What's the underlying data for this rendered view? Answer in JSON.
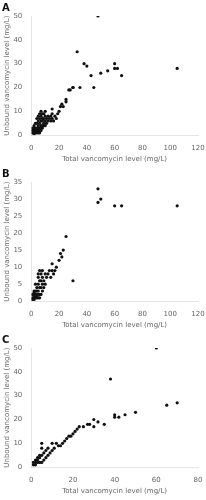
{
  "chart_data": [
    {
      "type": "scatter",
      "title": "A",
      "xlabel": "Total vancomycin level (mg/L)",
      "ylabel": "Unbound vancomycin level (mg/L)",
      "xlim": [
        0,
        120
      ],
      "ylim": [
        0,
        50
      ],
      "xticks": [
        0,
        20,
        40,
        60,
        80,
        100,
        120
      ],
      "yticks": [
        0,
        10,
        20,
        30,
        40,
        50
      ],
      "grid": false,
      "color": "#111111",
      "marker": "circle",
      "x": [
        1,
        1,
        1,
        2,
        2,
        2,
        2,
        2,
        2,
        2,
        3,
        3,
        3,
        3,
        3,
        3,
        4,
        4,
        4,
        4,
        4,
        4,
        4,
        5,
        5,
        5,
        5,
        5,
        5,
        5,
        6,
        6,
        6,
        6,
        6,
        6,
        7,
        7,
        7,
        7,
        7,
        7,
        8,
        8,
        8,
        8,
        8,
        9,
        9,
        9,
        9,
        10,
        10,
        10,
        10,
        11,
        11,
        12,
        12,
        13,
        14,
        14,
        15,
        15,
        15,
        16,
        17,
        18,
        19,
        20,
        21,
        22,
        23,
        25,
        25,
        27,
        28,
        30,
        30,
        33,
        35,
        38,
        40,
        43,
        45,
        48,
        50,
        55,
        60,
        60,
        62,
        65,
        105
      ],
      "values": [
        1,
        2,
        3,
        0.5,
        1,
        1.5,
        2,
        2.5,
        3,
        4,
        1,
        1.5,
        2,
        2.5,
        3,
        5,
        1,
        1.5,
        2,
        2.5,
        3,
        5,
        7,
        1,
        1.5,
        2,
        3,
        4,
        6,
        8,
        1,
        2,
        3,
        5,
        7,
        9,
        2,
        3,
        4,
        6,
        8,
        10,
        3,
        4,
        6,
        7,
        9,
        4,
        5,
        7,
        9,
        4,
        6,
        8,
        10,
        5,
        7,
        6,
        8,
        7,
        6,
        8,
        7,
        9,
        11,
        6,
        8,
        7,
        9,
        10,
        12,
        13,
        12,
        14,
        15,
        19,
        19,
        20,
        20,
        35,
        20,
        30,
        29,
        25,
        20,
        50,
        26,
        27,
        28,
        30,
        28,
        25,
        28
      ]
    },
    {
      "type": "scatter",
      "title": "B",
      "xlabel": "Total vancomycin level (mg/L)",
      "ylabel": "Unbound vancomycin level (mg/L)",
      "xlim": [
        0,
        120
      ],
      "ylim": [
        0,
        35
      ],
      "xticks": [
        0,
        20,
        40,
        60,
        80,
        100,
        120
      ],
      "yticks": [
        0,
        5,
        10,
        15,
        20,
        25,
        30,
        35
      ],
      "grid": false,
      "color": "#111111",
      "marker": "circle",
      "x": [
        1,
        1,
        1,
        2,
        2,
        2,
        2,
        2,
        2,
        3,
        3,
        3,
        3,
        3,
        4,
        4,
        4,
        4,
        4,
        5,
        5,
        5,
        5,
        5,
        5,
        6,
        6,
        6,
        6,
        6,
        7,
        7,
        7,
        7,
        8,
        8,
        8,
        8,
        9,
        9,
        10,
        10,
        11,
        12,
        13,
        14,
        15,
        15,
        16,
        17,
        18,
        20,
        21,
        22,
        23,
        25,
        30,
        48,
        48,
        50,
        60,
        65,
        105
      ],
      "values": [
        0.5,
        1,
        2,
        0.5,
        1,
        1.5,
        2,
        2.5,
        3,
        1,
        1.5,
        2,
        3,
        5,
        1,
        1.5,
        2,
        3,
        4,
        1,
        2,
        3,
        5,
        7,
        8,
        1,
        2,
        4,
        6,
        9,
        2,
        4,
        6,
        8,
        3,
        5,
        7,
        9,
        4,
        6,
        5,
        8,
        7,
        8,
        9,
        7,
        9,
        11,
        8,
        9,
        10,
        12,
        14,
        13,
        15,
        19,
        6,
        29,
        33,
        30,
        28,
        28,
        28
      ]
    },
    {
      "type": "scatter",
      "title": "C",
      "xlabel": "Total vancomycin level (mg/L)",
      "ylabel": "Unbound vancomycin level (mg/L)",
      "xlim": [
        0,
        80
      ],
      "ylim": [
        0,
        50
      ],
      "xticks": [
        0,
        20,
        40,
        60,
        80
      ],
      "yticks": [
        0,
        10,
        20,
        30,
        40,
        50
      ],
      "grid": false,
      "color": "#111111",
      "marker": "circle",
      "x": [
        1,
        1,
        2,
        2,
        2,
        3,
        3,
        3,
        4,
        4,
        4,
        5,
        5,
        5,
        5,
        6,
        6,
        7,
        7,
        8,
        8,
        9,
        10,
        10,
        11,
        12,
        13,
        14,
        15,
        16,
        17,
        18,
        19,
        20,
        21,
        22,
        23,
        25,
        27,
        28,
        30,
        30,
        32,
        35,
        38,
        40,
        40,
        42,
        45,
        50,
        60,
        65,
        70
      ],
      "values": [
        1,
        2,
        1,
        2,
        3,
        2,
        3,
        4,
        2,
        4,
        5,
        2,
        5,
        8,
        10,
        3,
        6,
        4,
        7,
        5,
        8,
        6,
        7,
        10,
        8,
        10,
        9,
        9,
        10,
        11,
        12,
        13,
        13,
        14,
        15,
        16,
        17,
        17,
        18,
        18,
        17,
        20,
        19,
        18,
        37,
        21,
        22,
        21,
        22,
        23,
        50,
        26,
        27
      ]
    }
  ]
}
